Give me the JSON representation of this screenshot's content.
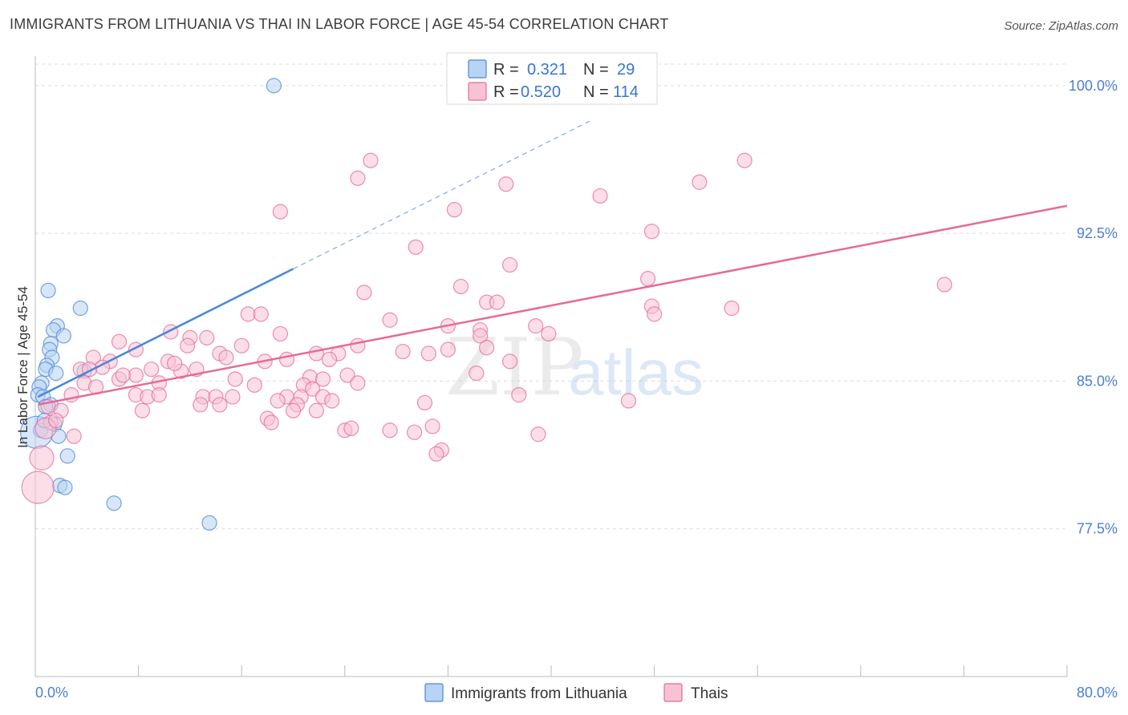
{
  "header": {
    "title": "IMMIGRANTS FROM LITHUANIA VS THAI IN LABOR FORCE | AGE 45-54 CORRELATION CHART",
    "source": "Source: ZipAtlas.com"
  },
  "watermark": {
    "zip": "ZIP",
    "atlas": "atlas"
  },
  "legend": {
    "r_label": "R =",
    "n_label": "N =",
    "rows": [
      {
        "r": "0.321",
        "n": "29",
        "color": "#a8c8f0"
      },
      {
        "r": "0.520",
        "n": "114",
        "color": "#f5b8cc"
      }
    ]
  },
  "chart_data": {
    "type": "scatter",
    "title": "IMMIGRANTS FROM LITHUANIA VS THAI IN LABOR FORCE | AGE 45-54 CORRELATION CHART",
    "xlabel": "",
    "ylabel": "In Labor Force | Age 45-54",
    "xlim": [
      0,
      80
    ],
    "ylim": [
      70,
      101.5
    ],
    "x_tick_labels": [
      "0.0%",
      "80.0%"
    ],
    "y_ticks": [
      77.5,
      85.0,
      92.5,
      100.0
    ],
    "y_tick_labels": [
      "77.5%",
      "85.0%",
      "92.5%",
      "100.0%"
    ],
    "grid": true,
    "legend_placement": "bottom",
    "series": [
      {
        "name": "Immigrants from Lithuania",
        "color": "#4a87d8",
        "fill": "#b8d3f3",
        "trend": {
          "x0": 0.2,
          "y0": 84.2,
          "x1": 20.0,
          "y1": 90.7,
          "dashed_to_x": 43.0,
          "dashed_to_y": 98.2
        },
        "points": [
          [
            18.5,
            100.0
          ],
          [
            1.0,
            89.6
          ],
          [
            3.5,
            88.7
          ],
          [
            1.7,
            87.8
          ],
          [
            1.4,
            87.6
          ],
          [
            2.2,
            87.3
          ],
          [
            1.2,
            86.9
          ],
          [
            1.1,
            86.6
          ],
          [
            1.3,
            86.2
          ],
          [
            0.9,
            85.8
          ],
          [
            0.8,
            85.6
          ],
          [
            1.6,
            85.4
          ],
          [
            3.8,
            85.5
          ],
          [
            0.5,
            84.9
          ],
          [
            0.3,
            84.7
          ],
          [
            0.2,
            84.3
          ],
          [
            0.6,
            84.2
          ],
          [
            1.2,
            83.8
          ],
          [
            0.8,
            83.7
          ],
          [
            1.5,
            82.8
          ],
          [
            0.4,
            82.5
          ],
          [
            1.8,
            82.2
          ],
          [
            2.5,
            81.2
          ],
          [
            1.9,
            79.7
          ],
          [
            2.3,
            79.6
          ],
          [
            6.1,
            78.8
          ],
          [
            13.5,
            77.8
          ],
          [
            0.1,
            82.4
          ],
          [
            0.7,
            83.0
          ]
        ]
      },
      {
        "name": "Thais",
        "color": "#e66a98",
        "fill": "#f7c3d4",
        "trend": {
          "x0": 0.2,
          "y0": 83.8,
          "x1": 80.0,
          "y1": 93.9
        },
        "points": [
          [
            43.5,
            100.0
          ],
          [
            26.0,
            96.2
          ],
          [
            55.0,
            96.2
          ],
          [
            25.0,
            95.3
          ],
          [
            36.5,
            95.0
          ],
          [
            51.5,
            95.1
          ],
          [
            43.8,
            94.4
          ],
          [
            19.0,
            93.6
          ],
          [
            32.5,
            93.7
          ],
          [
            47.8,
            92.6
          ],
          [
            29.5,
            91.8
          ],
          [
            36.8,
            90.9
          ],
          [
            47.5,
            90.2
          ],
          [
            70.5,
            89.9
          ],
          [
            33.0,
            89.8
          ],
          [
            25.5,
            89.5
          ],
          [
            35.0,
            89.0
          ],
          [
            35.8,
            89.0
          ],
          [
            47.8,
            88.8
          ],
          [
            54.0,
            88.7
          ],
          [
            48.0,
            88.4
          ],
          [
            16.5,
            88.4
          ],
          [
            17.5,
            88.4
          ],
          [
            27.5,
            88.1
          ],
          [
            32.0,
            87.8
          ],
          [
            38.8,
            87.8
          ],
          [
            34.5,
            87.6
          ],
          [
            19.0,
            87.4
          ],
          [
            39.8,
            87.4
          ],
          [
            10.5,
            87.5
          ],
          [
            12.0,
            87.2
          ],
          [
            13.3,
            87.2
          ],
          [
            34.5,
            87.3
          ],
          [
            6.5,
            87.0
          ],
          [
            11.8,
            86.8
          ],
          [
            16.0,
            86.8
          ],
          [
            7.8,
            86.6
          ],
          [
            25.0,
            86.8
          ],
          [
            28.5,
            86.5
          ],
          [
            30.5,
            86.4
          ],
          [
            23.5,
            86.4
          ],
          [
            21.8,
            86.4
          ],
          [
            14.3,
            86.4
          ],
          [
            14.8,
            86.2
          ],
          [
            4.5,
            86.2
          ],
          [
            5.8,
            86.0
          ],
          [
            19.5,
            86.1
          ],
          [
            22.8,
            86.1
          ],
          [
            10.3,
            86.0
          ],
          [
            17.8,
            86.0
          ],
          [
            36.8,
            86.0
          ],
          [
            35.0,
            86.7
          ],
          [
            3.5,
            85.6
          ],
          [
            5.2,
            85.7
          ],
          [
            9.0,
            85.6
          ],
          [
            11.3,
            85.5
          ],
          [
            12.5,
            85.6
          ],
          [
            7.8,
            85.3
          ],
          [
            24.2,
            85.3
          ],
          [
            21.3,
            85.2
          ],
          [
            22.3,
            85.1
          ],
          [
            6.5,
            85.1
          ],
          [
            15.5,
            85.1
          ],
          [
            9.6,
            84.9
          ],
          [
            3.8,
            84.9
          ],
          [
            4.7,
            84.7
          ],
          [
            17.0,
            84.8
          ],
          [
            20.8,
            84.8
          ],
          [
            21.5,
            84.6
          ],
          [
            25.0,
            84.9
          ],
          [
            34.2,
            85.4
          ],
          [
            32.0,
            86.6
          ],
          [
            7.8,
            84.3
          ],
          [
            8.7,
            84.2
          ],
          [
            13.0,
            84.2
          ],
          [
            14.0,
            84.2
          ],
          [
            19.5,
            84.2
          ],
          [
            20.6,
            84.2
          ],
          [
            22.3,
            84.2
          ],
          [
            37.5,
            84.3
          ],
          [
            46.0,
            84.0
          ],
          [
            14.3,
            83.8
          ],
          [
            1.0,
            83.7
          ],
          [
            2.0,
            83.5
          ],
          [
            8.3,
            83.5
          ],
          [
            20.3,
            83.8
          ],
          [
            21.8,
            83.5
          ],
          [
            30.2,
            83.9
          ],
          [
            18.0,
            83.1
          ],
          [
            18.3,
            82.9
          ],
          [
            1.2,
            82.9
          ],
          [
            0.8,
            82.6
          ],
          [
            1.6,
            83.0
          ],
          [
            24.0,
            82.5
          ],
          [
            27.5,
            82.5
          ],
          [
            29.4,
            82.4
          ],
          [
            30.8,
            82.7
          ],
          [
            3.0,
            82.2
          ],
          [
            31.5,
            81.5
          ],
          [
            31.1,
            81.3
          ],
          [
            39.0,
            82.3
          ],
          [
            0.5,
            81.1
          ],
          [
            0.2,
            79.6
          ],
          [
            2.8,
            84.3
          ],
          [
            4.2,
            85.6
          ],
          [
            6.8,
            85.3
          ],
          [
            24.5,
            82.6
          ],
          [
            9.6,
            84.3
          ],
          [
            12.8,
            83.8
          ],
          [
            15.3,
            84.2
          ],
          [
            18.8,
            84.0
          ],
          [
            20.0,
            83.5
          ],
          [
            23.0,
            84.0
          ],
          [
            10.8,
            85.9
          ]
        ]
      }
    ]
  }
}
